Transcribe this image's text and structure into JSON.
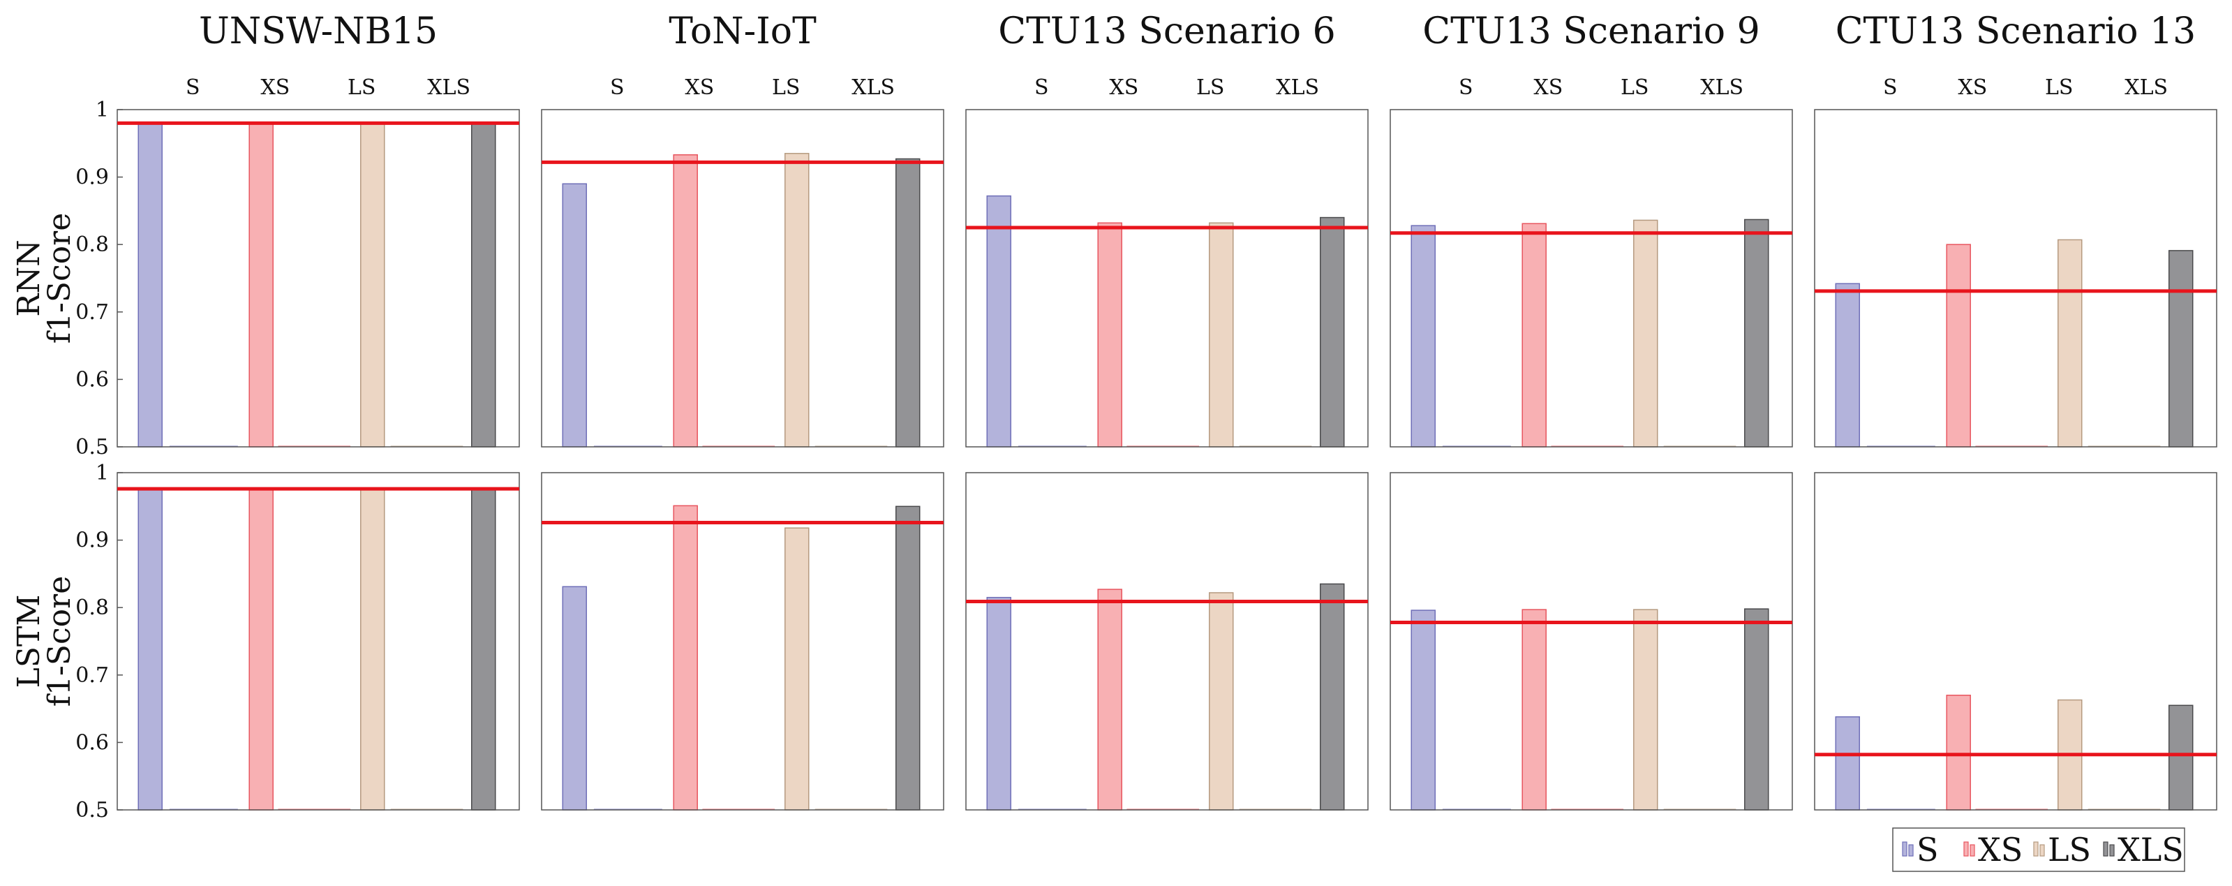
{
  "chart_data": {
    "type": "bar",
    "columns": [
      "UNSW-NB15",
      "ToN-IoT",
      "CTU13 Scenario 6",
      "CTU13 Scenario 9",
      "CTU13 Scenario 13"
    ],
    "rows": [
      {
        "label_line1": "RNN",
        "label_line2": "f1-Score"
      },
      {
        "label_line1": "LSTM",
        "label_line2": "f1-Score"
      }
    ],
    "categories": [
      "S",
      "XS",
      "LS",
      "XLS"
    ],
    "ylim": [
      0.5,
      1
    ],
    "yticks": [
      "0.5",
      "0.6",
      "0.7",
      "0.8",
      "0.9",
      "1"
    ],
    "colors": {
      "S": {
        "fill": "#b3b3db",
        "stroke": "#6f6fb8"
      },
      "XS": {
        "fill": "#f8b0b3",
        "stroke": "#e8555e"
      },
      "LS": {
        "fill": "#ecd6c4",
        "stroke": "#b59a80"
      },
      "XLS": {
        "fill": "#939396",
        "stroke": "#4a4a4c"
      },
      "baseline": "#e8141c"
    },
    "legend": {
      "placement": "bottom-right",
      "entries": [
        "S",
        "XS",
        "LS",
        "XLS"
      ]
    },
    "panels": [
      [
        {
          "values": [
            0.98,
            0.98,
            0.98,
            0.98
          ],
          "baseline": 0.98
        },
        {
          "values": [
            0.89,
            0.933,
            0.935,
            0.927
          ],
          "baseline": 0.922
        },
        {
          "values": [
            0.872,
            0.832,
            0.832,
            0.84
          ],
          "baseline": 0.825
        },
        {
          "values": [
            0.828,
            0.831,
            0.836,
            0.837
          ],
          "baseline": 0.817
        },
        {
          "values": [
            0.742,
            0.8,
            0.807,
            0.791
          ],
          "baseline": 0.731
        }
      ],
      [
        {
          "values": [
            0.975,
            0.975,
            0.975,
            0.975
          ],
          "baseline": 0.976
        },
        {
          "values": [
            0.831,
            0.951,
            0.918,
            0.95
          ],
          "baseline": 0.926
        },
        {
          "values": [
            0.815,
            0.827,
            0.822,
            0.835
          ],
          "baseline": 0.809
        },
        {
          "values": [
            0.796,
            0.797,
            0.797,
            0.798
          ],
          "baseline": 0.778
        },
        {
          "values": [
            0.638,
            0.67,
            0.663,
            0.655
          ],
          "baseline": 0.582
        }
      ]
    ]
  }
}
